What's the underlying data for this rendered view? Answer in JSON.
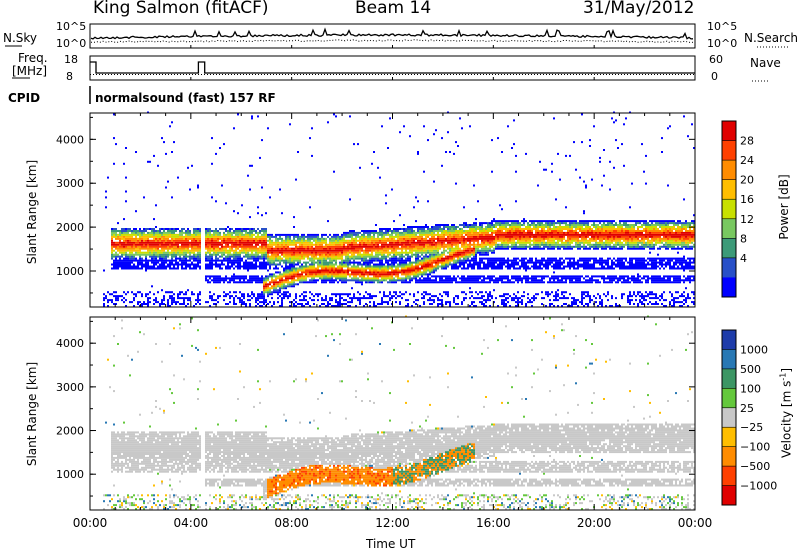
{
  "header": {
    "station": "King Salmon (fitACF)",
    "beam": "Beam 14",
    "date": "31/May/2012"
  },
  "noise_panel": {
    "left_label": "N.Sky",
    "right_label": "N.Search",
    "left_ticks": [
      "10^5",
      "10^0"
    ],
    "right_ticks": [
      "10^5",
      "10^0"
    ]
  },
  "freq_panel": {
    "left_label_1": "Freq.",
    "left_label_2": "[MHz]",
    "right_label": "Nave",
    "left_ticks": [
      "18",
      "8"
    ],
    "right_ticks": [
      "60",
      "0"
    ]
  },
  "cpid": {
    "label": "CPID",
    "text": "normalsound (fast) 157 RF"
  },
  "chart_data": [
    {
      "type": "heatmap",
      "name": "power",
      "ylabel": "Slant Range [km]",
      "ylim": [
        180,
        4600
      ],
      "yticks": [
        "4000",
        "3000",
        "2000",
        "1000"
      ],
      "xlim": [
        0,
        24
      ],
      "colorbar": {
        "label": "Power [dB]",
        "ticks": [
          "28",
          "24",
          "20",
          "16",
          "12",
          "8",
          "4"
        ],
        "colors": [
          "#e00000",
          "#ff4000",
          "#ff8c00",
          "#ffbe00",
          "#c8e000",
          "#78c860",
          "#3c9a78",
          "#2850c8",
          "#0000ff"
        ]
      }
    },
    {
      "type": "heatmap",
      "name": "velocity",
      "ylabel": "Slant Range [km]",
      "ylim": [
        180,
        4600
      ],
      "yticks": [
        "4000",
        "3000",
        "2000",
        "1000"
      ],
      "xlim": [
        0,
        24
      ],
      "xlabel": "Time UT",
      "xticks": [
        "00:00",
        "04:00",
        "08:00",
        "12:00",
        "16:00",
        "20:00",
        "00:00"
      ],
      "colorbar": {
        "label": "Velocity",
        "unit": "[m s",
        "unit_exp": "-1",
        "unit_close": "]",
        "ticks": [
          "1000",
          "500",
          "100",
          "25",
          "−25",
          "−100",
          "−500",
          "−1000"
        ],
        "colors": [
          "#1e3caa",
          "#2878b4",
          "#3c9664",
          "#64c83c",
          "#c8c8c8",
          "#ffbe00",
          "#ff8c00",
          "#ff4000",
          "#e00000"
        ]
      }
    }
  ]
}
